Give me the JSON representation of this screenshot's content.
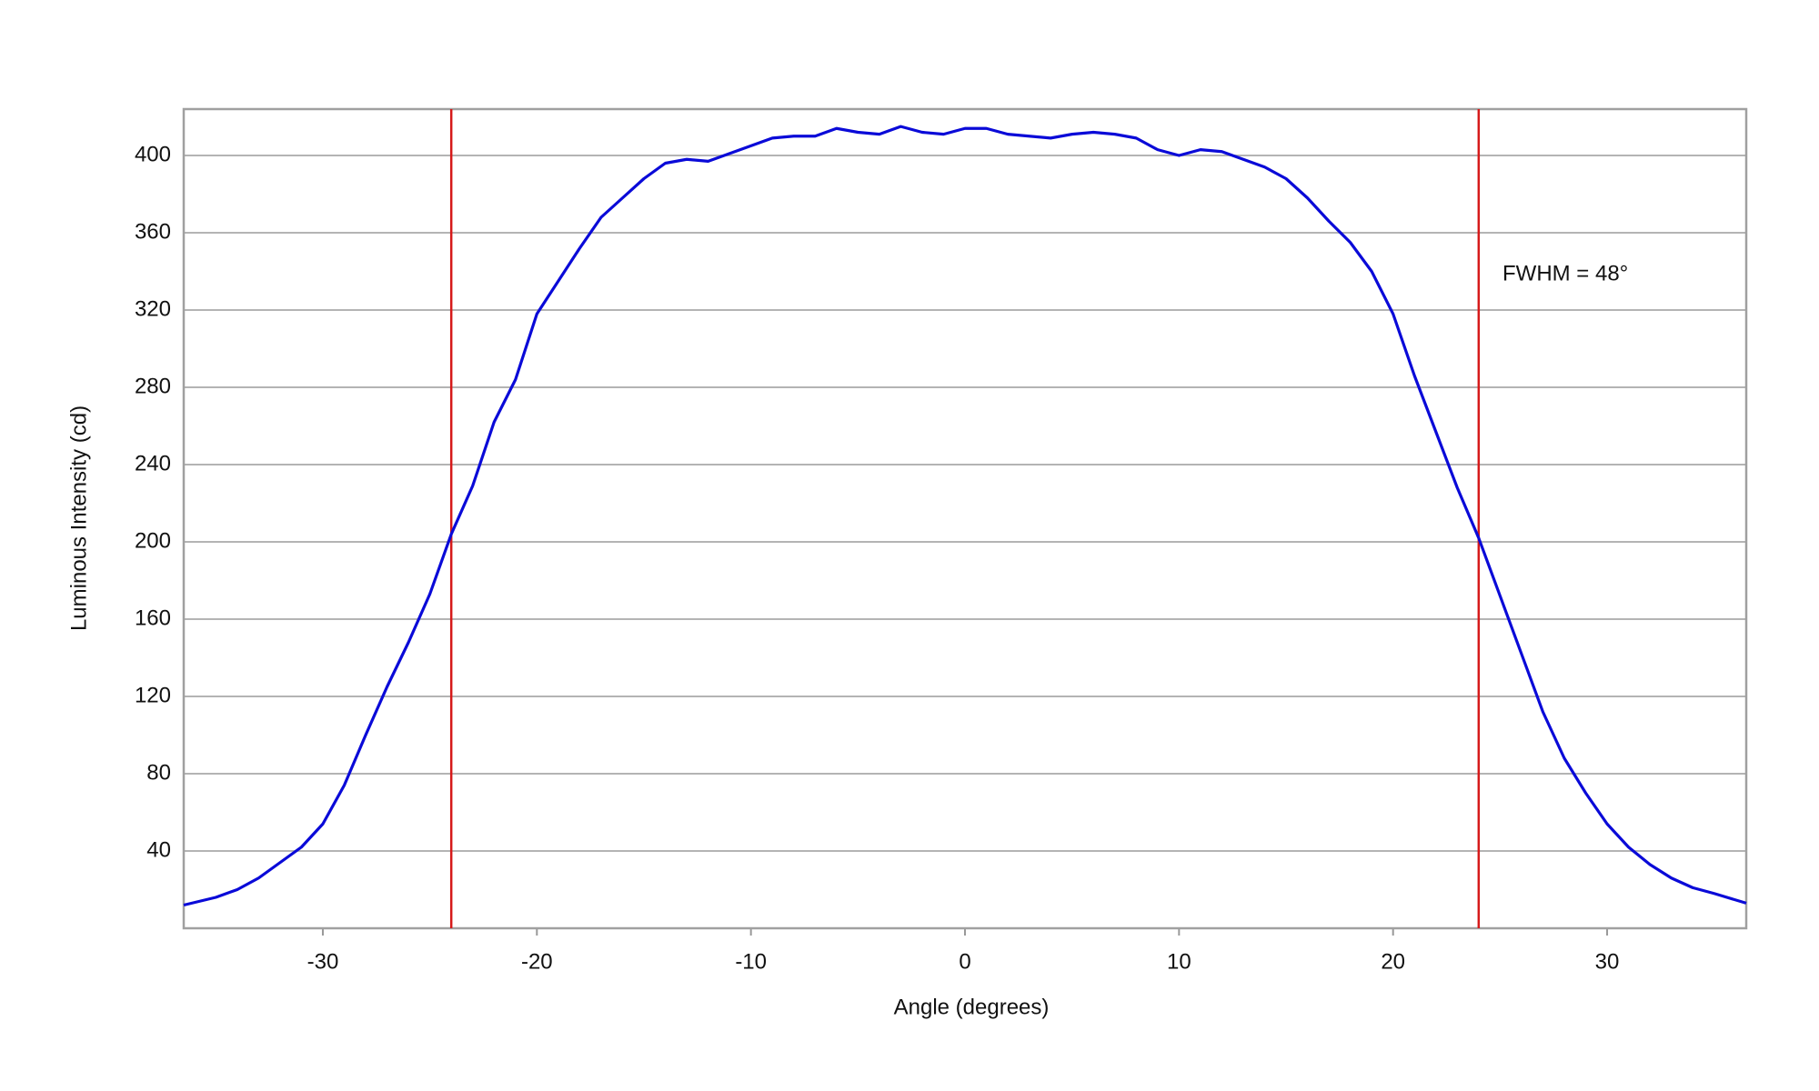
{
  "chart_data": {
    "type": "line",
    "x_label": "Angle (degrees)",
    "y_label": "Luminous Intensity (cd)",
    "annotation": "FWHM = 48°",
    "xlim": [
      -36.5,
      36.5
    ],
    "ylim": [
      0,
      424
    ],
    "xticks": [
      -30,
      -20,
      -10,
      0,
      10,
      20,
      30
    ],
    "yticks": [
      40,
      80,
      120,
      160,
      200,
      240,
      280,
      320,
      360,
      400
    ],
    "grid": true,
    "series": [
      {
        "name": "Luminous Intensity",
        "color": "#0a0ad8",
        "x": [
          -36.5,
          -35,
          -34,
          -33,
          -32,
          -31,
          -30,
          -29,
          -28,
          -27,
          -26,
          -25,
          -24,
          -23,
          -22,
          -21,
          -20,
          -19,
          -18,
          -17,
          -16,
          -15,
          -14,
          -13,
          -12,
          -11,
          -10,
          -9,
          -8,
          -7,
          -6,
          -5,
          -4,
          -3,
          -2,
          -1,
          0,
          1,
          2,
          3,
          4,
          5,
          6,
          7,
          8,
          9,
          10,
          11,
          12,
          13,
          14,
          15,
          16,
          17,
          18,
          19,
          20,
          21,
          22,
          23,
          24,
          25,
          26,
          27,
          28,
          29,
          30,
          31,
          32,
          33,
          34,
          35,
          36.5
        ],
        "values": [
          12,
          16,
          20,
          26,
          34,
          42,
          54,
          74,
          100,
          125,
          148,
          173,
          204,
          229,
          262,
          284,
          318,
          335,
          352,
          368,
          378,
          388,
          396,
          398,
          397,
          401,
          405,
          409,
          410,
          410,
          414,
          412,
          411,
          415,
          412,
          411,
          414,
          414,
          411,
          410,
          409,
          411,
          412,
          411,
          409,
          403,
          400,
          403,
          402,
          398,
          394,
          388,
          378,
          366,
          355,
          340,
          318,
          286,
          257,
          228,
          202,
          172,
          142,
          112,
          88,
          70,
          54,
          42,
          33,
          26,
          21,
          18,
          13
        ]
      }
    ],
    "reference_lines": [
      {
        "x": -24,
        "color": "#d61a1a"
      },
      {
        "x": 24,
        "color": "#d61a1a"
      }
    ]
  }
}
